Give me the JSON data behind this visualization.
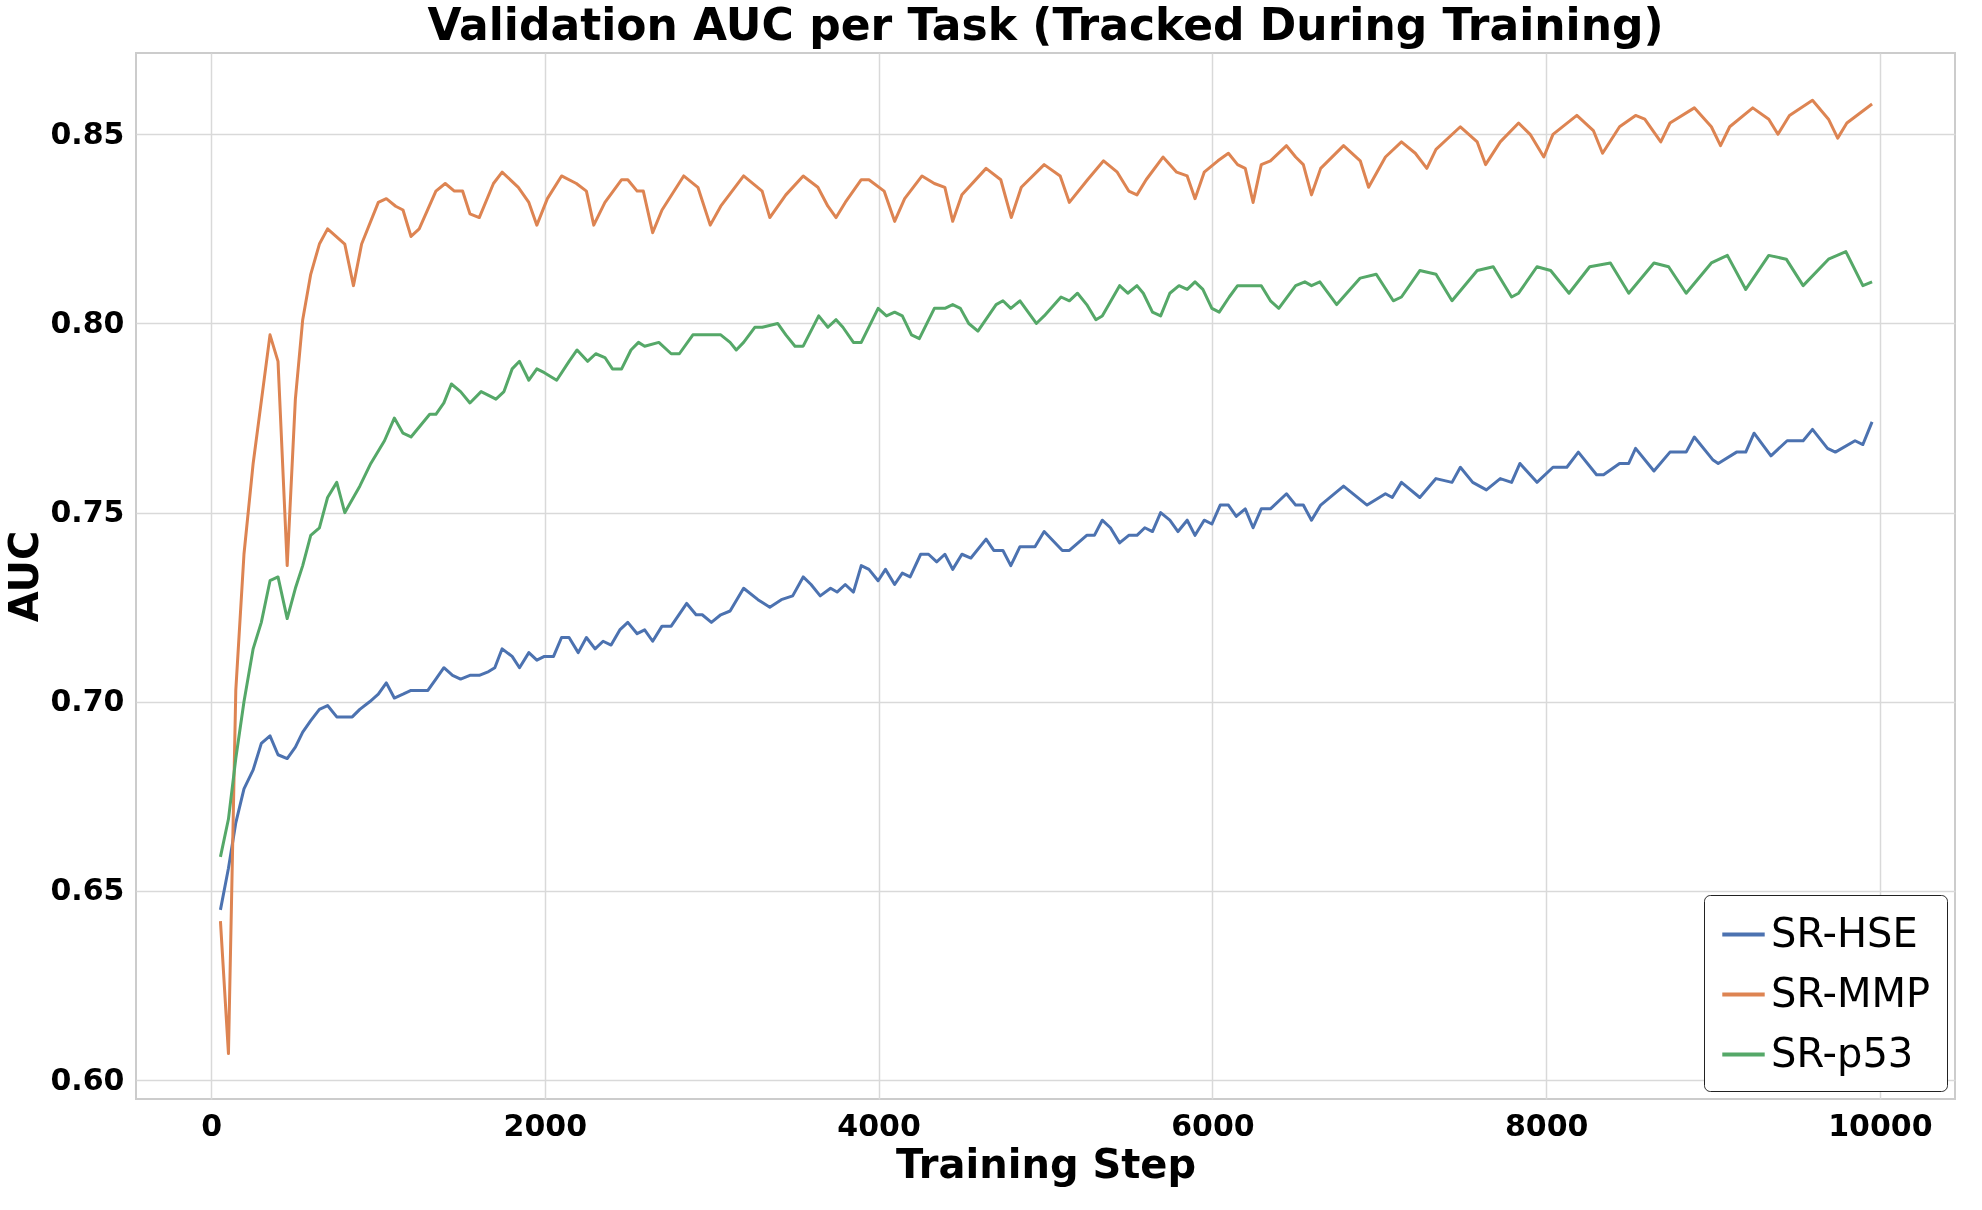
{
  "chart_data": {
    "type": "line",
    "title": "Validation AUC per Task (Tracked During Training)",
    "xlabel": "Training Step",
    "ylabel": "AUC",
    "xlim": [
      -450,
      10450
    ],
    "xticks": [
      0,
      2000,
      4000,
      6000,
      8000,
      10000
    ],
    "ylim": [
      0.595,
      0.8715
    ],
    "yticks": [
      {
        "value": 0.6,
        "label": "0.60"
      },
      {
        "value": 0.65,
        "label": "0.65"
      },
      {
        "value": 0.7,
        "label": "0.70"
      },
      {
        "value": 0.75,
        "label": "0.75"
      },
      {
        "value": 0.8,
        "label": "0.80"
      },
      {
        "value": 0.85,
        "label": "0.85"
      }
    ],
    "grid": true,
    "legend": "bottom right",
    "marker": "none",
    "line_style": "solid",
    "series": [
      {
        "name": "SR-HSE",
        "color": "#4c72b0",
        "x": [
          56,
          104,
          148,
          197,
          252,
          301,
          353,
          401,
          456,
          505,
          549,
          597,
          649,
          698,
          753,
          846,
          891,
          950,
          1002,
          1050,
          1098,
          1150,
          1198,
          1247,
          1299,
          1347,
          1395,
          1447,
          1495,
          1551,
          1607,
          1663,
          1700,
          1744,
          1804,
          1848,
          1904,
          1952,
          1997,
          2052,
          2100,
          2145,
          2200,
          2249,
          2301,
          2349,
          2397,
          2449,
          2497,
          2553,
          2598,
          2646,
          2702,
          2757,
          2850,
          2906,
          2943,
          2998,
          3054,
          3110,
          3191,
          3277,
          3348,
          3417,
          3485,
          3548,
          3595,
          3650,
          3712,
          3751,
          3800,
          3849,
          3896,
          3942,
          3997,
          4041,
          4096,
          4142,
          4189,
          4252,
          4299,
          4348,
          4397,
          4444,
          4499,
          4553,
          4644,
          4690,
          4745,
          4792,
          4847,
          4937,
          4992,
          5101,
          5143,
          5247,
          5293,
          5340,
          5389,
          5444,
          5499,
          5548,
          5595,
          5641,
          5690,
          5745,
          5794,
          5849,
          5896,
          5951,
          5997,
          6047,
          6096,
          6143,
          6197,
          6244,
          6293,
          6348,
          6444,
          6499,
          6545,
          6594,
          6649,
          6786,
          6927,
          7037,
          7078,
          7133,
          7243,
          7340,
          7436,
          7486,
          7560,
          7642,
          7725,
          7793,
          7843,
          7945,
          8041,
          8124,
          8193,
          8302,
          8344,
          8440,
          8495,
          8536,
          8646,
          8742,
          8839,
          8888,
          8998,
          9031,
          9141,
          9196,
          9246,
          9347,
          9444,
          9540,
          9596,
          9686,
          9733,
          9851,
          9898,
          9953
        ],
        "values": [
          0.645,
          0.656,
          0.668,
          0.677,
          0.682,
          0.689,
          0.691,
          0.686,
          0.685,
          0.688,
          0.692,
          0.695,
          0.698,
          0.699,
          0.696,
          0.696,
          0.698,
          0.7,
          0.702,
          0.705,
          0.701,
          0.702,
          0.703,
          0.703,
          0.703,
          0.706,
          0.709,
          0.707,
          0.706,
          0.707,
          0.707,
          0.708,
          0.709,
          0.714,
          0.712,
          0.709,
          0.713,
          0.711,
          0.712,
          0.712,
          0.717,
          0.717,
          0.713,
          0.717,
          0.714,
          0.716,
          0.715,
          0.719,
          0.721,
          0.718,
          0.719,
          0.716,
          0.72,
          0.72,
          0.726,
          0.723,
          0.723,
          0.721,
          0.723,
          0.724,
          0.73,
          0.727,
          0.725,
          0.727,
          0.728,
          0.733,
          0.731,
          0.728,
          0.73,
          0.729,
          0.731,
          0.729,
          0.736,
          0.735,
          0.732,
          0.735,
          0.731,
          0.734,
          0.733,
          0.739,
          0.739,
          0.737,
          0.739,
          0.735,
          0.739,
          0.738,
          0.743,
          0.74,
          0.74,
          0.736,
          0.741,
          0.741,
          0.745,
          0.74,
          0.74,
          0.744,
          0.744,
          0.748,
          0.746,
          0.742,
          0.744,
          0.744,
          0.746,
          0.745,
          0.75,
          0.748,
          0.745,
          0.748,
          0.744,
          0.748,
          0.747,
          0.752,
          0.752,
          0.749,
          0.751,
          0.746,
          0.751,
          0.751,
          0.755,
          0.752,
          0.752,
          0.748,
          0.752,
          0.757,
          0.752,
          0.755,
          0.754,
          0.758,
          0.754,
          0.759,
          0.758,
          0.762,
          0.758,
          0.756,
          0.759,
          0.758,
          0.763,
          0.758,
          0.762,
          0.762,
          0.766,
          0.76,
          0.76,
          0.763,
          0.763,
          0.767,
          0.761,
          0.766,
          0.766,
          0.77,
          0.764,
          0.763,
          0.766,
          0.766,
          0.771,
          0.765,
          0.769,
          0.769,
          0.772,
          0.767,
          0.766,
          0.769,
          0.768,
          0.774
        ]
      },
      {
        "name": "SR-MMP",
        "color": "#dd8452",
        "x": [
          56,
          104,
          148,
          197,
          252,
          353,
          401,
          456,
          505,
          549,
          597,
          649,
          698,
          801,
          853,
          902,
          1002,
          1050,
          1106,
          1150,
          1198,
          1247,
          1347,
          1403,
          1458,
          1507,
          1551,
          1607,
          1692,
          1744,
          1841,
          1904,
          1952,
          2015,
          2100,
          2189,
          2249,
          2293,
          2360,
          2460,
          2497,
          2553,
          2590,
          2646,
          2702,
          2832,
          2917,
          2991,
          3054,
          3191,
          3302,
          3348,
          3444,
          3548,
          3636,
          3696,
          3745,
          3800,
          3896,
          3942,
          4033,
          4096,
          4156,
          4260,
          4334,
          4397,
          4444,
          4499,
          4644,
          4732,
          4795,
          4855,
          4992,
          5088,
          5143,
          5252,
          5348,
          5430,
          5499,
          5548,
          5603,
          5704,
          5786,
          5849,
          5896,
          5951,
          6033,
          6096,
          6151,
          6197,
          6244,
          6293,
          6348,
          6444,
          6499,
          6545,
          6594,
          6649,
          6786,
          6886,
          6936,
          7037,
          7133,
          7216,
          7285,
          7340,
          7486,
          7587,
          7637,
          7725,
          7835,
          7904,
          7986,
          8041,
          8184,
          8283,
          8338,
          8440,
          8536,
          8591,
          8687,
          8742,
          8888,
          8990,
          9045,
          9100,
          9238,
          9334,
          9389,
          9458,
          9596,
          9692,
          9747,
          9802,
          9953
        ],
        "values": [
          0.642,
          0.607,
          0.703,
          0.739,
          0.763,
          0.797,
          0.79,
          0.736,
          0.78,
          0.801,
          0.813,
          0.821,
          0.825,
          0.821,
          0.81,
          0.821,
          0.832,
          0.833,
          0.831,
          0.83,
          0.823,
          0.825,
          0.835,
          0.837,
          0.835,
          0.835,
          0.829,
          0.828,
          0.837,
          0.84,
          0.836,
          0.832,
          0.826,
          0.833,
          0.839,
          0.837,
          0.835,
          0.826,
          0.832,
          0.838,
          0.838,
          0.835,
          0.835,
          0.824,
          0.83,
          0.839,
          0.836,
          0.826,
          0.831,
          0.839,
          0.835,
          0.828,
          0.834,
          0.839,
          0.836,
          0.831,
          0.828,
          0.832,
          0.838,
          0.838,
          0.835,
          0.827,
          0.833,
          0.839,
          0.837,
          0.836,
          0.827,
          0.834,
          0.841,
          0.838,
          0.828,
          0.836,
          0.842,
          0.839,
          0.832,
          0.838,
          0.843,
          0.84,
          0.835,
          0.834,
          0.838,
          0.844,
          0.84,
          0.839,
          0.833,
          0.84,
          0.843,
          0.845,
          0.842,
          0.841,
          0.832,
          0.842,
          0.843,
          0.847,
          0.844,
          0.842,
          0.834,
          0.841,
          0.847,
          0.843,
          0.836,
          0.844,
          0.848,
          0.845,
          0.841,
          0.846,
          0.852,
          0.848,
          0.842,
          0.848,
          0.853,
          0.85,
          0.844,
          0.85,
          0.855,
          0.851,
          0.845,
          0.852,
          0.855,
          0.854,
          0.848,
          0.853,
          0.857,
          0.852,
          0.847,
          0.852,
          0.857,
          0.854,
          0.85,
          0.855,
          0.859,
          0.854,
          0.849,
          0.853,
          0.858
        ]
      },
      {
        "name": "SR-p53",
        "color": "#55a868",
        "x": [
          56,
          104,
          148,
          197,
          252,
          301,
          353,
          401,
          456,
          505,
          549,
          597,
          649,
          698,
          753,
          801,
          891,
          957,
          1039,
          1098,
          1150,
          1198,
          1310,
          1347,
          1395,
          1440,
          1495,
          1551,
          1618,
          1663,
          1707,
          1755,
          1804,
          1848,
          1904,
          1952,
          1997,
          2071,
          2145,
          2193,
          2256,
          2305,
          2360,
          2405,
          2460,
          2516,
          2561,
          2598,
          2683,
          2757,
          2806,
          2887,
          2906,
          3017,
          3054,
          3110,
          3147,
          3191,
          3258,
          3303,
          3395,
          3444,
          3499,
          3548,
          3641,
          3696,
          3745,
          3786,
          3849,
          3896,
          3997,
          4047,
          4096,
          4142,
          4197,
          4244,
          4334,
          4397,
          4444,
          4490,
          4540,
          4595,
          4704,
          4745,
          4792,
          4847,
          4945,
          4992,
          5093,
          5143,
          5192,
          5247,
          5302,
          5340,
          5444,
          5493,
          5548,
          5586,
          5641,
          5690,
          5745,
          5800,
          5849,
          5896,
          5943,
          5997,
          6041,
          6101,
          6151,
          6225,
          6293,
          6348,
          6398,
          6499,
          6554,
          6594,
          6644,
          6745,
          6886,
          6982,
          7084,
          7133,
          7243,
          7340,
          7436,
          7587,
          7683,
          7793,
          7835,
          7945,
          8027,
          8137,
          8261,
          8385,
          8495,
          8646,
          8734,
          8839,
          8990,
          9086,
          9196,
          9334,
          9439,
          9540,
          9692,
          9796,
          9898,
          9953
        ],
        "values": [
          0.659,
          0.669,
          0.685,
          0.7,
          0.714,
          0.721,
          0.732,
          0.733,
          0.722,
          0.73,
          0.736,
          0.744,
          0.746,
          0.754,
          0.758,
          0.75,
          0.757,
          0.763,
          0.769,
          0.775,
          0.771,
          0.77,
          0.776,
          0.776,
          0.779,
          0.784,
          0.782,
          0.779,
          0.782,
          0.781,
          0.78,
          0.782,
          0.788,
          0.79,
          0.785,
          0.788,
          0.787,
          0.785,
          0.79,
          0.793,
          0.79,
          0.792,
          0.791,
          0.788,
          0.788,
          0.793,
          0.795,
          0.794,
          0.795,
          0.792,
          0.792,
          0.797,
          0.797,
          0.797,
          0.797,
          0.795,
          0.793,
          0.795,
          0.799,
          0.799,
          0.8,
          0.797,
          0.794,
          0.794,
          0.802,
          0.799,
          0.801,
          0.799,
          0.795,
          0.795,
          0.804,
          0.802,
          0.803,
          0.802,
          0.797,
          0.796,
          0.804,
          0.804,
          0.805,
          0.804,
          0.8,
          0.798,
          0.805,
          0.806,
          0.804,
          0.806,
          0.8,
          0.802,
          0.807,
          0.806,
          0.808,
          0.805,
          0.801,
          0.802,
          0.81,
          0.808,
          0.81,
          0.808,
          0.803,
          0.802,
          0.808,
          0.81,
          0.809,
          0.811,
          0.809,
          0.804,
          0.803,
          0.807,
          0.81,
          0.81,
          0.81,
          0.806,
          0.804,
          0.81,
          0.811,
          0.81,
          0.811,
          0.805,
          0.812,
          0.813,
          0.806,
          0.807,
          0.814,
          0.813,
          0.806,
          0.814,
          0.815,
          0.807,
          0.808,
          0.815,
          0.814,
          0.808,
          0.815,
          0.816,
          0.808,
          0.816,
          0.815,
          0.808,
          0.816,
          0.818,
          0.809,
          0.818,
          0.817,
          0.81,
          0.817,
          0.819,
          0.81,
          0.811
        ]
      }
    ]
  }
}
